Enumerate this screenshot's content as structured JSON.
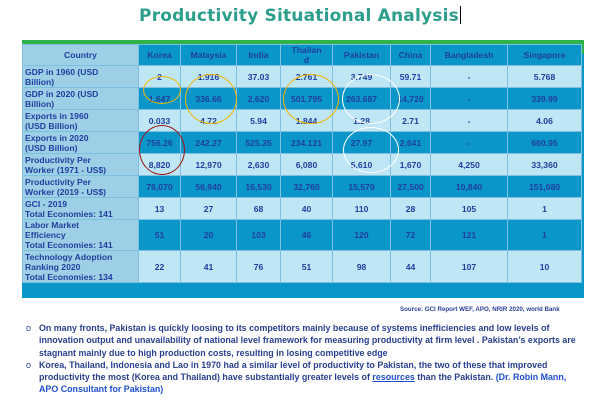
{
  "title": "Productivity Situational Analysis",
  "table": {
    "headers": [
      "Country",
      "Korea",
      "Malaysia",
      "India",
      "Thailan\nd",
      "Pakistan",
      "China",
      "Bangladesh",
      "Singapore"
    ],
    "rows": [
      {
        "label": "GDP in 1960 (USD\nBillion)",
        "values": [
          "2",
          "1.916",
          "37.03",
          "2.761",
          "3.749",
          "59.71",
          "-",
          "5.768"
        ]
      },
      {
        "label": "GDP in 2020 (USD\nBillion)",
        "values": [
          "1,647",
          "336.66",
          "2,620",
          "501.795",
          "263.687",
          "14,720",
          "-",
          "339.99"
        ]
      },
      {
        "label": "Exports in 1960\n(USD Billion)",
        "values": [
          "0.033",
          "4.72",
          "5.94",
          "1.844",
          "1.28",
          "2.71",
          "-",
          "4.06"
        ]
      },
      {
        "label": "Exports in 2020\n(USD Billion)",
        "values": [
          "756.26",
          "242.27",
          "525.35",
          "234.121",
          "27.97",
          "2,641",
          "-",
          "660.95"
        ]
      },
      {
        "label": "Productivity Per\nWorker (1971 - US$)",
        "values": [
          "8,820",
          "12,970",
          "2,630",
          "6,080",
          "5,610",
          "1,670",
          "4,250",
          "33,360"
        ]
      },
      {
        "label": "Productivity Per\nWorker (2019 - US$)",
        "values": [
          "76,070",
          "56,940",
          "16,530",
          "32,760",
          "15,570",
          "27,500",
          "10,840",
          "151,080"
        ]
      },
      {
        "label": "GCI - 2019\nTotal Economies: 141",
        "values": [
          "13",
          "27",
          "68",
          "40",
          "110",
          "28",
          "105",
          "1"
        ]
      },
      {
        "label": "Labor Market\nEfficiency\nTotal Economies: 141",
        "values": [
          "51",
          "20",
          "103",
          "46",
          "120",
          "72",
          "121",
          "1"
        ]
      },
      {
        "label": "Technology Adoption\nRanking 2020\nTotal Economies: 134",
        "values": [
          "22",
          "41",
          "76",
          "51",
          "98",
          "44",
          "107",
          "10"
        ]
      }
    ]
  },
  "source": "Source: GCI Report WEF, APO, NRIR 2020, world Bank",
  "bullets": {
    "b1": "On many fronts, Pakistan is quickly loosing to its competitors mainly because of systems inefficiencies and low levels of innovation output and unavailability of national level framework for measuring productivity at firm level . Pakistan’s exports are stagnant mainly due to high production costs, resulting in losing competitive edge",
    "b2_pre": "Korea, Thailand, Indonesia and Lao in 1970 had a similar level of productivity to Pakistan, the two of these that improved productivity the most (Korea and Thailand) have substantially greater levels of ",
    "b2_link": "resources",
    "b2_post": " than the Pakistan. ",
    "b2_cite": "(Dr. Robin Mann, APO Consultant for Pakistan)",
    "marker": "o"
  },
  "colors": {
    "title": "#2E9E8C",
    "table_blue": "#0B96C9",
    "green": "#2DB34A",
    "text": "#1F3F9F",
    "circle_gold": "#F2B705",
    "circle_red": "#A01818",
    "circle_white": "#FFFFFF"
  }
}
